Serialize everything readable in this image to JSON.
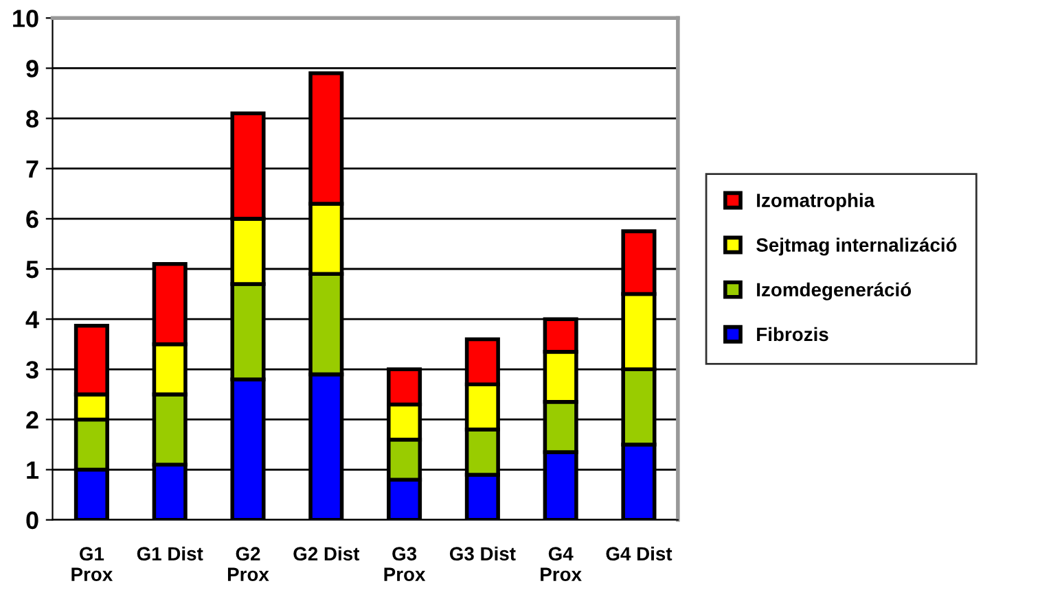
{
  "chart_data": {
    "type": "bar",
    "stacked": true,
    "categories": [
      "G1\nProx",
      "G1 Dist",
      "G2\nProx",
      "G2 Dist",
      "G3\nProx",
      "G3 Dist",
      "G4\nProx",
      "G4 Dist"
    ],
    "series": [
      {
        "name": "Fibrozis",
        "color": "#0000ff",
        "values": [
          1.0,
          1.1,
          2.8,
          2.9,
          0.8,
          0.9,
          1.35,
          1.5
        ]
      },
      {
        "name": "Izomdegeneráció",
        "color": "#99cc00",
        "values": [
          1.0,
          1.4,
          1.9,
          2.0,
          0.8,
          0.9,
          1.0,
          1.5
        ]
      },
      {
        "name": "Sejtmag internalizáció",
        "color": "#ffff00",
        "values": [
          0.5,
          1.0,
          1.3,
          1.4,
          0.7,
          0.9,
          1.0,
          1.5
        ]
      },
      {
        "name": "Izomatrophia",
        "color": "#ff0000",
        "values": [
          1.37,
          1.6,
          2.1,
          2.6,
          0.7,
          0.9,
          0.65,
          1.25
        ]
      }
    ],
    "ylim": [
      0,
      10
    ],
    "yticks": [
      0,
      1,
      2,
      3,
      4,
      5,
      6,
      7,
      8,
      9,
      10
    ],
    "grid": "y",
    "legend": "right"
  }
}
